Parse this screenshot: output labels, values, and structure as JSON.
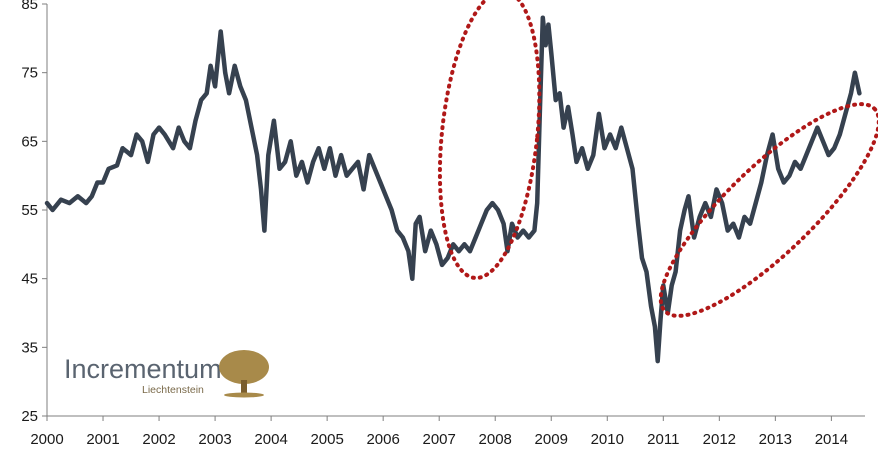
{
  "chart_data": {
    "type": "line",
    "title": "",
    "xlabel": "",
    "ylabel": "",
    "xlim": [
      2000,
      2014.6
    ],
    "ylim": [
      25,
      85
    ],
    "y_ticks": [
      25,
      35,
      45,
      55,
      65,
      75,
      85
    ],
    "x_ticks": [
      2000,
      2001,
      2002,
      2003,
      2004,
      2005,
      2006,
      2007,
      2008,
      2009,
      2010,
      2011,
      2012,
      2013,
      2014
    ],
    "grid": false,
    "series": [
      {
        "color": "#36414f",
        "points": [
          [
            2000.0,
            56
          ],
          [
            2000.1,
            55
          ],
          [
            2000.25,
            56.5
          ],
          [
            2000.4,
            56
          ],
          [
            2000.55,
            57
          ],
          [
            2000.7,
            56
          ],
          [
            2000.8,
            57
          ],
          [
            2000.9,
            59
          ],
          [
            2001.0,
            59
          ],
          [
            2001.1,
            61
          ],
          [
            2001.25,
            61.5
          ],
          [
            2001.35,
            64
          ],
          [
            2001.5,
            63
          ],
          [
            2001.6,
            66
          ],
          [
            2001.7,
            65
          ],
          [
            2001.8,
            62
          ],
          [
            2001.9,
            66
          ],
          [
            2002.0,
            67
          ],
          [
            2002.1,
            66
          ],
          [
            2002.25,
            64
          ],
          [
            2002.35,
            67
          ],
          [
            2002.45,
            65
          ],
          [
            2002.55,
            64
          ],
          [
            2002.65,
            68
          ],
          [
            2002.75,
            71
          ],
          [
            2002.85,
            72
          ],
          [
            2002.92,
            76
          ],
          [
            2003.0,
            73
          ],
          [
            2003.05,
            77
          ],
          [
            2003.1,
            81
          ],
          [
            2003.18,
            75
          ],
          [
            2003.25,
            72
          ],
          [
            2003.35,
            76
          ],
          [
            2003.45,
            73
          ],
          [
            2003.55,
            71
          ],
          [
            2003.65,
            67
          ],
          [
            2003.75,
            63
          ],
          [
            2003.82,
            58
          ],
          [
            2003.88,
            52
          ],
          [
            2003.95,
            63
          ],
          [
            2004.05,
            68
          ],
          [
            2004.15,
            61
          ],
          [
            2004.25,
            62
          ],
          [
            2004.35,
            65
          ],
          [
            2004.45,
            60
          ],
          [
            2004.55,
            62
          ],
          [
            2004.65,
            59
          ],
          [
            2004.75,
            62
          ],
          [
            2004.85,
            64
          ],
          [
            2004.95,
            61
          ],
          [
            2005.05,
            64
          ],
          [
            2005.15,
            60
          ],
          [
            2005.25,
            63
          ],
          [
            2005.35,
            60
          ],
          [
            2005.45,
            61
          ],
          [
            2005.55,
            62
          ],
          [
            2005.65,
            58
          ],
          [
            2005.75,
            63
          ],
          [
            2005.85,
            61
          ],
          [
            2005.95,
            59
          ],
          [
            2006.05,
            57
          ],
          [
            2006.15,
            55
          ],
          [
            2006.25,
            52
          ],
          [
            2006.35,
            51
          ],
          [
            2006.45,
            49
          ],
          [
            2006.52,
            45
          ],
          [
            2006.58,
            53
          ],
          [
            2006.65,
            54
          ],
          [
            2006.75,
            49
          ],
          [
            2006.85,
            52
          ],
          [
            2006.95,
            50
          ],
          [
            2007.05,
            47
          ],
          [
            2007.15,
            48
          ],
          [
            2007.25,
            50
          ],
          [
            2007.35,
            49
          ],
          [
            2007.45,
            50
          ],
          [
            2007.55,
            49
          ],
          [
            2007.65,
            51
          ],
          [
            2007.75,
            53
          ],
          [
            2007.85,
            55
          ],
          [
            2007.95,
            56
          ],
          [
            2008.05,
            55
          ],
          [
            2008.15,
            53
          ],
          [
            2008.22,
            49
          ],
          [
            2008.3,
            53
          ],
          [
            2008.4,
            51
          ],
          [
            2008.5,
            52
          ],
          [
            2008.6,
            51
          ],
          [
            2008.7,
            52
          ],
          [
            2008.75,
            56
          ],
          [
            2008.8,
            70
          ],
          [
            2008.85,
            83
          ],
          [
            2008.9,
            79
          ],
          [
            2008.95,
            82
          ],
          [
            2009.0,
            78
          ],
          [
            2009.08,
            71
          ],
          [
            2009.15,
            72
          ],
          [
            2009.22,
            67
          ],
          [
            2009.3,
            70
          ],
          [
            2009.38,
            66
          ],
          [
            2009.45,
            62
          ],
          [
            2009.55,
            64
          ],
          [
            2009.65,
            61
          ],
          [
            2009.75,
            63
          ],
          [
            2009.85,
            69
          ],
          [
            2009.95,
            64
          ],
          [
            2010.05,
            66
          ],
          [
            2010.15,
            64
          ],
          [
            2010.25,
            67
          ],
          [
            2010.35,
            64
          ],
          [
            2010.45,
            61
          ],
          [
            2010.55,
            53
          ],
          [
            2010.62,
            48
          ],
          [
            2010.7,
            46
          ],
          [
            2010.78,
            41
          ],
          [
            2010.85,
            38
          ],
          [
            2010.9,
            33
          ],
          [
            2010.95,
            39
          ],
          [
            2011.0,
            44
          ],
          [
            2011.08,
            40
          ],
          [
            2011.15,
            44
          ],
          [
            2011.22,
            46
          ],
          [
            2011.3,
            52
          ],
          [
            2011.38,
            55
          ],
          [
            2011.45,
            57
          ],
          [
            2011.55,
            51
          ],
          [
            2011.65,
            54
          ],
          [
            2011.75,
            56
          ],
          [
            2011.85,
            54
          ],
          [
            2011.95,
            58
          ],
          [
            2012.05,
            56
          ],
          [
            2012.15,
            52
          ],
          [
            2012.25,
            53
          ],
          [
            2012.35,
            51
          ],
          [
            2012.45,
            54
          ],
          [
            2012.55,
            53
          ],
          [
            2012.65,
            56
          ],
          [
            2012.75,
            59
          ],
          [
            2012.85,
            63
          ],
          [
            2012.95,
            66
          ],
          [
            2013.05,
            61
          ],
          [
            2013.15,
            59
          ],
          [
            2013.25,
            60
          ],
          [
            2013.35,
            62
          ],
          [
            2013.45,
            61
          ],
          [
            2013.55,
            63
          ],
          [
            2013.65,
            65
          ],
          [
            2013.75,
            67
          ],
          [
            2013.85,
            65
          ],
          [
            2013.95,
            63
          ],
          [
            2014.05,
            64
          ],
          [
            2014.15,
            66
          ],
          [
            2014.25,
            69
          ],
          [
            2014.35,
            72
          ],
          [
            2014.42,
            75
          ],
          [
            2014.5,
            72
          ]
        ]
      }
    ],
    "annotations": [
      {
        "type": "dotted-ellipse",
        "color": "#b01818",
        "cx": 2007.9,
        "cy": 66,
        "rx_years": 0.85,
        "ry_units": 21,
        "angle_deg": 6
      },
      {
        "type": "dotted-ellipse",
        "color": "#b01818",
        "cx": 2012.9,
        "cy": 55,
        "rx_years": 2.6,
        "ry_units": 10.5,
        "angle_deg": -44
      }
    ]
  },
  "logo": {
    "name": "Incrementum",
    "subtitle": "Liechtenstein",
    "tree_color": "#a88a4a"
  }
}
